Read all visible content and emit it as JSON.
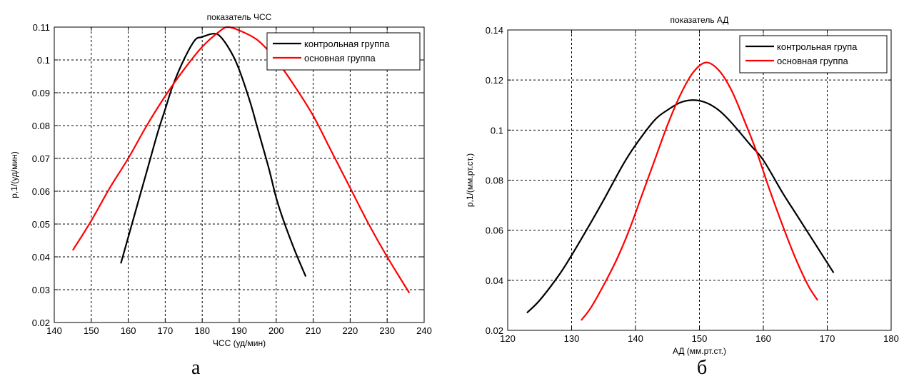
{
  "captions": {
    "a": "а",
    "b": "б"
  },
  "chart_data": [
    {
      "type": "line",
      "title": "показатель ЧСС",
      "xlabel": "ЧСС (уд/мин)",
      "ylabel": "p,1/(уд/мин)",
      "xlim": [
        140,
        240
      ],
      "ylim": [
        0.02,
        0.11
      ],
      "xticks": [
        140,
        150,
        160,
        170,
        180,
        190,
        200,
        210,
        220,
        230,
        240
      ],
      "yticks": [
        0.02,
        0.03,
        0.04,
        0.05,
        0.06,
        0.07,
        0.08,
        0.09,
        0.1,
        0.11
      ],
      "grid": true,
      "legend_position": "top-right",
      "series": [
        {
          "name": "контрольная группа",
          "color": "#000000",
          "x": [
            158,
            160,
            162,
            165,
            168,
            170,
            172,
            175,
            178,
            180,
            183,
            185,
            188,
            190,
            193,
            195,
            198,
            200,
            202,
            205,
            208
          ],
          "y": [
            0.038,
            0.046,
            0.054,
            0.066,
            0.078,
            0.085,
            0.092,
            0.1,
            0.106,
            0.107,
            0.108,
            0.107,
            0.102,
            0.097,
            0.087,
            0.079,
            0.067,
            0.058,
            0.051,
            0.042,
            0.034
          ]
        },
        {
          "name": "основная группа",
          "color": "#ff0000",
          "x": [
            145,
            150,
            155,
            160,
            165,
            170,
            175,
            180,
            185,
            187,
            190,
            195,
            200,
            205,
            210,
            215,
            220,
            225,
            230,
            236
          ],
          "y": [
            0.042,
            0.051,
            0.061,
            0.07,
            0.08,
            0.089,
            0.097,
            0.104,
            0.109,
            0.11,
            0.109,
            0.106,
            0.1,
            0.092,
            0.083,
            0.072,
            0.061,
            0.05,
            0.04,
            0.029
          ]
        }
      ]
    },
    {
      "type": "line",
      "title": "показатель АД",
      "xlabel": "АД (мм.рт.ст.)",
      "ylabel": "p,1/(мм.рт.ст.)",
      "xlim": [
        120,
        180
      ],
      "ylim": [
        0.02,
        0.14
      ],
      "xticks": [
        120,
        130,
        140,
        150,
        160,
        170,
        180
      ],
      "yticks": [
        0.02,
        0.04,
        0.06,
        0.08,
        0.1,
        0.12,
        0.14
      ],
      "grid": true,
      "legend_position": "top-right",
      "series": [
        {
          "name": "контрольная група",
          "color": "#000000",
          "x": [
            123,
            125,
            128,
            130,
            133,
            135,
            138,
            140,
            143,
            145,
            147,
            149,
            151,
            153,
            155,
            158,
            160,
            163,
            165,
            168,
            171
          ],
          "y": [
            0.027,
            0.032,
            0.042,
            0.05,
            0.063,
            0.072,
            0.086,
            0.094,
            0.104,
            0.108,
            0.111,
            0.112,
            0.111,
            0.108,
            0.103,
            0.094,
            0.088,
            0.075,
            0.067,
            0.055,
            0.043
          ]
        },
        {
          "name": "основная группа",
          "color": "#ff0000",
          "x": [
            131.5,
            133,
            135,
            137,
            139,
            141,
            143,
            145,
            147,
            149,
            151,
            153,
            155,
            157,
            159,
            161,
            163,
            165,
            167,
            168.5
          ],
          "y": [
            0.024,
            0.029,
            0.038,
            0.048,
            0.06,
            0.074,
            0.088,
            0.102,
            0.114,
            0.123,
            0.127,
            0.124,
            0.116,
            0.104,
            0.091,
            0.076,
            0.062,
            0.049,
            0.038,
            0.032
          ]
        }
      ]
    }
  ]
}
